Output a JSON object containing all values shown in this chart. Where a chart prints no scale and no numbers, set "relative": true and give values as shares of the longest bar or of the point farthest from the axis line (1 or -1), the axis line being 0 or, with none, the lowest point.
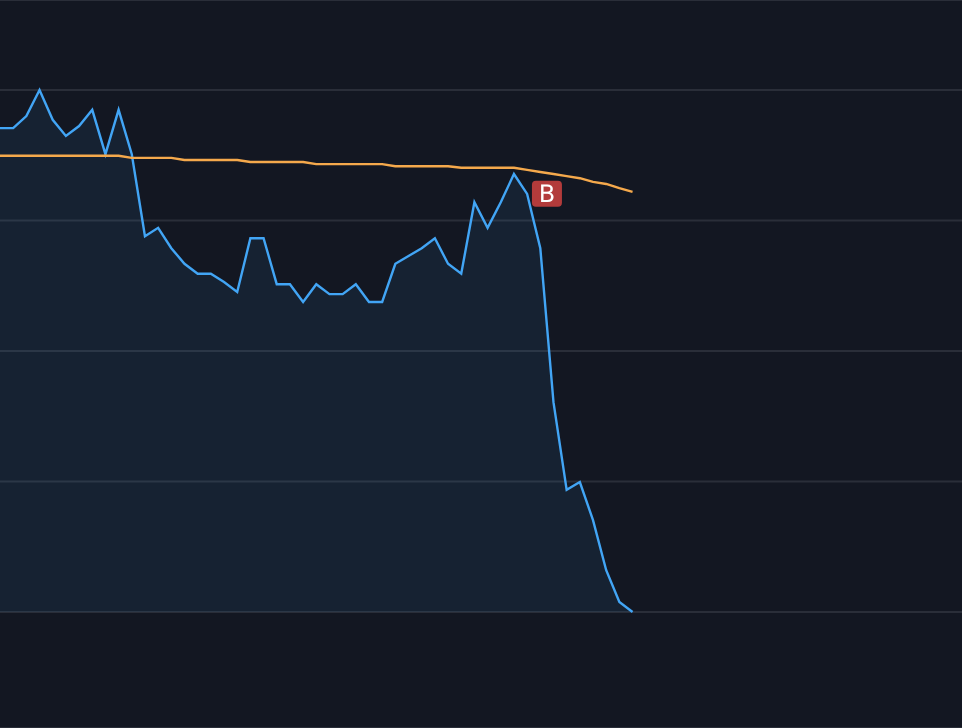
{
  "chart_data": {
    "type": "area",
    "relative": true,
    "grid": "y",
    "categories": [
      null,
      null,
      null,
      null,
      null,
      null,
      null,
      null,
      null,
      null,
      null,
      null,
      null,
      null,
      null,
      null,
      null,
      null,
      null,
      null,
      null,
      null,
      null,
      null,
      null,
      null,
      null,
      null,
      null,
      null,
      null,
      null,
      null,
      null,
      null,
      null,
      null,
      null,
      null,
      null,
      null,
      null,
      null,
      null,
      null,
      null,
      null,
      null,
      null,
      null,
      null,
      null,
      null,
      null,
      null,
      null,
      null,
      null,
      null,
      null,
      null,
      null,
      null,
      null,
      null,
      null,
      null,
      null,
      null,
      null,
      null,
      null,
      null,
      null
    ],
    "series": [
      {
        "color": "#42a5f5",
        "values": [
          0.927,
          0.927,
          0.95,
          1,
          0.943,
          0.912,
          0.931,
          0.962,
          0.877,
          0.962,
          0.877,
          0.72,
          0.736,
          0.697,
          0.667,
          0.648,
          0.648,
          0.632,
          0.613,
          0.716,
          0.716,
          0.628,
          0.628,
          0.594,
          0.628,
          0.609,
          0.609,
          0.628,
          0.594,
          0.594,
          0.667,
          0.682,
          0.697,
          0.716,
          0.667,
          0.648,
          0.785,
          0.736,
          0.785,
          0.839,
          0.801,
          0.697,
          0.402,
          0.234,
          0.249,
          0.176,
          0.08,
          0.019,
          0,
          null,
          null,
          null,
          null,
          null,
          null,
          null,
          null,
          null,
          null,
          null,
          null,
          null,
          null,
          null,
          null,
          null,
          null,
          null,
          null,
          null,
          null,
          null,
          null,
          null
        ]
      },
      {
        "type": "line",
        "color": "#f5a94c",
        "values": [
          0.874,
          0.874,
          0.874,
          0.874,
          0.874,
          0.874,
          0.874,
          0.874,
          0.874,
          0.874,
          0.87,
          0.87,
          0.87,
          0.87,
          0.866,
          0.866,
          0.866,
          0.866,
          0.866,
          0.862,
          0.862,
          0.862,
          0.862,
          0.862,
          0.858,
          0.858,
          0.858,
          0.858,
          0.858,
          0.858,
          0.854,
          0.854,
          0.854,
          0.854,
          0.854,
          0.851,
          0.851,
          0.851,
          0.851,
          0.851,
          0.847,
          0.843,
          0.839,
          0.835,
          0.831,
          0.824,
          0.82,
          0.812,
          0.805,
          null,
          null,
          null,
          null,
          null,
          null,
          null,
          null,
          null,
          null,
          null,
          null,
          null,
          null,
          null,
          null,
          null,
          null,
          null,
          null,
          null,
          null,
          null,
          null,
          null
        ]
      }
    ],
    "annotations": [
      {
        "text": "B",
        "y": 0.83
      }
    ]
  }
}
